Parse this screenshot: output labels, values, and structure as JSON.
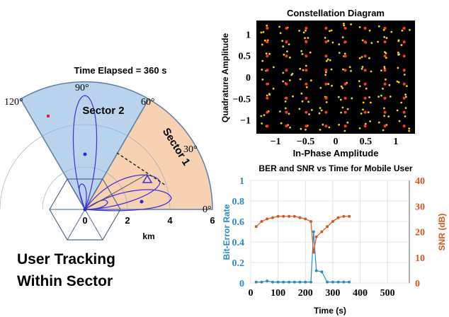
{
  "left_panel": {
    "time_elapsed": "Time Elapsed = 360 s",
    "angle_labels": [
      "120°",
      "90°",
      "60°",
      "30°",
      "0°"
    ],
    "sector1_label": "Sector 1",
    "sector2_label": "Sector 2",
    "range_ticks": [
      "0",
      "2",
      "4",
      "6"
    ],
    "range_unit": "km",
    "caption_line1": "User Tracking",
    "caption_line2": "Within Sector",
    "colors": {
      "sector1": "#f6d2b2",
      "sector2": "#b9d3ec",
      "beam": "#3f2fd8",
      "user": "#1f2fd0",
      "marker": "#d62a2a"
    }
  },
  "constellation": {
    "title": "Constellation Diagram",
    "xlabel": "In-Phase Amplitude",
    "ylabel": "Quadrature Amplitude",
    "x_ticks": [
      "−1",
      "−0.5",
      "0",
      "0.5",
      "1"
    ],
    "y_ticks": [
      "1",
      "0.5",
      "0",
      "−0.5",
      "−1"
    ],
    "background": "#000000",
    "point_colors": [
      "#f3d21a",
      "#ff3d1a"
    ]
  },
  "chart_data": {
    "type": "line",
    "title": "BER and SNR vs Time for Mobile User",
    "xlabel": "Time (s)",
    "ylabel_left": "Bit-Error Rate",
    "ylabel_right": "SNR (dB)",
    "xlim": [
      0,
      580
    ],
    "x_ticks": [
      "0",
      "100",
      "200",
      "300",
      "400",
      "500"
    ],
    "ylim_left": [
      0,
      1
    ],
    "y_ticks_left": [
      "0",
      "0.2",
      "0.4",
      "0.6",
      "0.8",
      "1"
    ],
    "ylim_right": [
      0,
      40
    ],
    "y_ticks_right": [
      "0",
      "10",
      "20",
      "30",
      "40"
    ],
    "grid": true,
    "series": [
      {
        "axis": "left",
        "color": "#2a8cc4",
        "x": [
          20,
          40,
          60,
          80,
          100,
          120,
          140,
          160,
          180,
          200,
          220,
          230,
          240,
          260,
          280,
          300,
          320,
          340,
          360
        ],
        "y": [
          0.01,
          0.01,
          0.02,
          0.01,
          0.01,
          0.01,
          0.01,
          0.01,
          0.01,
          0.01,
          0.01,
          0.5,
          0.12,
          0.11,
          0.01,
          0.01,
          0.01,
          0.01,
          0.01
        ]
      },
      {
        "axis": "right",
        "color": "#d9551f",
        "x": [
          20,
          40,
          60,
          80,
          100,
          120,
          140,
          160,
          180,
          200,
          220,
          230,
          240,
          260,
          280,
          300,
          320,
          340,
          360
        ],
        "y": [
          22,
          24,
          25,
          25.5,
          26,
          26,
          26,
          26,
          25.5,
          25,
          24,
          12,
          18,
          20,
          22,
          24,
          25.5,
          26,
          26
        ]
      }
    ]
  }
}
